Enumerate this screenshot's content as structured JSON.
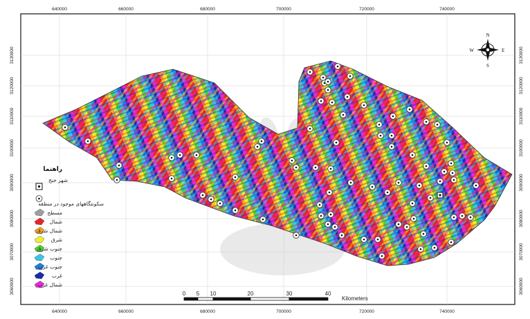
{
  "axes": {
    "x_ticks": [
      "640000",
      "660000",
      "680000",
      "700000",
      "720000",
      "740000"
    ],
    "y_ticks": [
      "3130000",
      "3120000",
      "3110000",
      "3100000",
      "3090000",
      "3080000",
      "3070000",
      "3060000"
    ]
  },
  "legend": {
    "title": "راهنما",
    "items": [
      {
        "label": "شهر خنج",
        "symbol": "city"
      },
      {
        "label": "سکونتگاههای موجود در منطقه",
        "symbol": "settlement"
      },
      {
        "label": "مسطح",
        "color": "#9e9e9e"
      },
      {
        "label": "شمال",
        "color": "#e8222a"
      },
      {
        "label": "شمال شرق",
        "color": "#f5a020"
      },
      {
        "label": "شرق",
        "color": "#f1ee2a"
      },
      {
        "label": "جنوب شرق",
        "color": "#4cd02c"
      },
      {
        "label": "جنوب",
        "color": "#38c6e8"
      },
      {
        "label": "جنوب غرب",
        "color": "#1e7ee0"
      },
      {
        "label": "غرب",
        "color": "#1a2aa8"
      },
      {
        "label": "شمال غرب",
        "color": "#e62ad8"
      }
    ]
  },
  "compass": {
    "n": "N",
    "s": "S",
    "e": "E",
    "w": "W"
  },
  "scale": {
    "ticks": [
      "0",
      "5",
      "10",
      "20",
      "30",
      "40"
    ],
    "unit": "Kilometers"
  },
  "colors": {
    "aspect_palette": [
      "#e8222a",
      "#f5a020",
      "#f1ee2a",
      "#4cd02c",
      "#38c6e8",
      "#1e7ee0",
      "#1a2aa8",
      "#e62ad8",
      "#9e9e9e"
    ]
  },
  "settlements": [
    [
      94,
      184
    ],
    [
      127,
      204
    ],
    [
      172,
      239
    ],
    [
      169,
      260
    ],
    [
      248,
      228
    ],
    [
      260,
      224
    ],
    [
      284,
      224
    ],
    [
      378,
      204
    ],
    [
      372,
      212
    ],
    [
      248,
      258
    ],
    [
      293,
      282
    ],
    [
      305,
      288
    ],
    [
      318,
      294
    ],
    [
      340,
      304
    ],
    [
      340,
      256
    ],
    [
      380,
      317
    ],
    [
      422,
      232
    ],
    [
      428,
      242
    ],
    [
      448,
      104
    ],
    [
      467,
      112
    ],
    [
      469,
      120
    ],
    [
      474,
      118
    ],
    [
      474,
      130
    ],
    [
      464,
      146
    ],
    [
      480,
      148
    ],
    [
      488,
      96
    ],
    [
      506,
      110
    ],
    [
      496,
      166
    ],
    [
      448,
      186
    ],
    [
      486,
      206
    ],
    [
      456,
      242
    ],
    [
      478,
      244
    ],
    [
      507,
      264
    ],
    [
      538,
      270
    ],
    [
      560,
      278
    ],
    [
      576,
      264
    ],
    [
      606,
      268
    ],
    [
      622,
      286
    ],
    [
      636,
      262
    ],
    [
      642,
      248
    ],
    [
      596,
      224
    ],
    [
      616,
      240
    ],
    [
      652,
      236
    ],
    [
      654,
      250
    ],
    [
      656,
      260
    ],
    [
      688,
      268
    ],
    [
      526,
      152
    ],
    [
      548,
      180
    ],
    [
      568,
      168
    ],
    [
      592,
      158
    ],
    [
      616,
      176
    ],
    [
      632,
      180
    ],
    [
      646,
      206
    ],
    [
      566,
      212
    ],
    [
      566,
      196
    ],
    [
      550,
      196
    ],
    [
      502,
      140
    ],
    [
      476,
      278
    ],
    [
      462,
      296
    ],
    [
      478,
      310
    ],
    [
      474,
      324
    ],
    [
      484,
      328
    ],
    [
      494,
      340
    ],
    [
      526,
      346
    ],
    [
      546,
      346
    ],
    [
      552,
      370
    ],
    [
      576,
      324
    ],
    [
      588,
      328
    ],
    [
      598,
      316
    ],
    [
      596,
      294
    ],
    [
      608,
      360
    ],
    [
      628,
      358
    ],
    [
      652,
      350
    ],
    [
      656,
      314
    ],
    [
      668,
      312
    ],
    [
      680,
      314
    ],
    [
      612,
      338
    ],
    [
      464,
      312
    ],
    [
      428,
      340
    ]
  ],
  "city_marker": [
    636,
    282
  ]
}
